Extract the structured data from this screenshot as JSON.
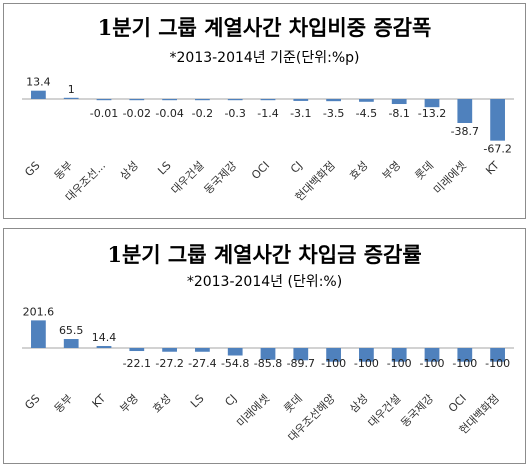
{
  "chart_data": [
    {
      "type": "bar",
      "title": "1분기 그룹 계열사간 차입비중 증감폭",
      "subtitle": "*2013-2014년 기준(단위:%p)",
      "categories": [
        "GS",
        "동부",
        "대우조선...",
        "삼성",
        "LS",
        "대우건설",
        "동국제강",
        "OCI",
        "CJ",
        "현대백화점",
        "효성",
        "부영",
        "롯데",
        "미래에셋",
        "KT"
      ],
      "value_labels": [
        "13.4",
        "1",
        "-0.01",
        "-0.02",
        "-0.04",
        "-0.2",
        "-0.3",
        "-1.4",
        "-3.1",
        "-3.5",
        "-4.5",
        "-8.1",
        "-13.2",
        "-38.7",
        "-67.2"
      ],
      "values": [
        13.4,
        1,
        -0.01,
        -0.02,
        -0.04,
        -0.2,
        -0.3,
        -1.4,
        -3.1,
        -3.5,
        -4.5,
        -8.1,
        -13.2,
        -38.7,
        -67.2
      ],
      "ylim": [
        -70,
        20
      ],
      "color": "#4f81bd"
    },
    {
      "type": "bar",
      "title": "1분기 그룹 계열사간 차입금 증감률",
      "subtitle": "*2013-2014년 (단위:%)",
      "categories": [
        "GS",
        "동부",
        "KT",
        "부영",
        "효성",
        "LS",
        "CJ",
        "미래에셋",
        "롯데",
        "대우조선해양",
        "삼성",
        "대우건설",
        "동국제강",
        "OCI",
        "현대백화점"
      ],
      "value_labels": [
        "201.6",
        "65.5",
        "14.4",
        "-22.1",
        "-27.2",
        "-27.4",
        "-54.8",
        "-85.8",
        "-89.7",
        "-100",
        "-100",
        "-100",
        "-100",
        "-100",
        "-100"
      ],
      "values": [
        201.6,
        65.5,
        14.4,
        -22.1,
        -27.2,
        -27.4,
        -54.8,
        -85.8,
        -89.7,
        -100,
        -100,
        -100,
        -100,
        -100,
        -100
      ],
      "ylim": [
        -110,
        210
      ],
      "color": "#4f81bd"
    }
  ]
}
